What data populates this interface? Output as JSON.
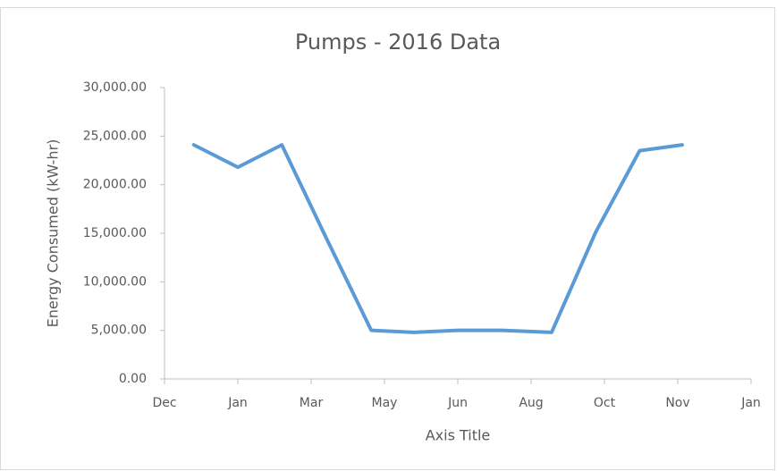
{
  "chart_data": {
    "type": "line",
    "title": "Pumps - 2016 Data",
    "x_label": "Axis Title",
    "y_label": "Energy Consumed (kW-hr)",
    "x": [
      20,
      50,
      80,
      110,
      141,
      170,
      200,
      230,
      264,
      294,
      324,
      353
    ],
    "series": [
      {
        "name": "Energy Consumed (kW-hr)",
        "color": "#5b9bd5",
        "values": [
          24100,
          21800,
          24100,
          14600,
          5000,
          4800,
          5000,
          5000,
          4800,
          15100,
          23500,
          24100
        ]
      }
    ],
    "xlim": [
      0,
      400
    ],
    "xticks": [
      {
        "value": 0,
        "label": "Dec"
      },
      {
        "value": 50,
        "label": "Jan"
      },
      {
        "value": 100,
        "label": "Mar"
      },
      {
        "value": 150,
        "label": "May"
      },
      {
        "value": 200,
        "label": "Jun"
      },
      {
        "value": 250,
        "label": "Aug"
      },
      {
        "value": 300,
        "label": "Oct"
      },
      {
        "value": 350,
        "label": "Nov"
      },
      {
        "value": 400,
        "label": "Jan"
      }
    ],
    "ylim": [
      0,
      30000
    ],
    "yticks": [
      {
        "value": 0,
        "label": "0.00"
      },
      {
        "value": 5000,
        "label": "5,000.00"
      },
      {
        "value": 10000,
        "label": "10,000.00"
      },
      {
        "value": 15000,
        "label": "15,000.00"
      },
      {
        "value": 20000,
        "label": "20,000.00"
      },
      {
        "value": 25000,
        "label": "25,000.00"
      },
      {
        "value": 30000,
        "label": "30,000.00"
      }
    ],
    "grid": false
  }
}
